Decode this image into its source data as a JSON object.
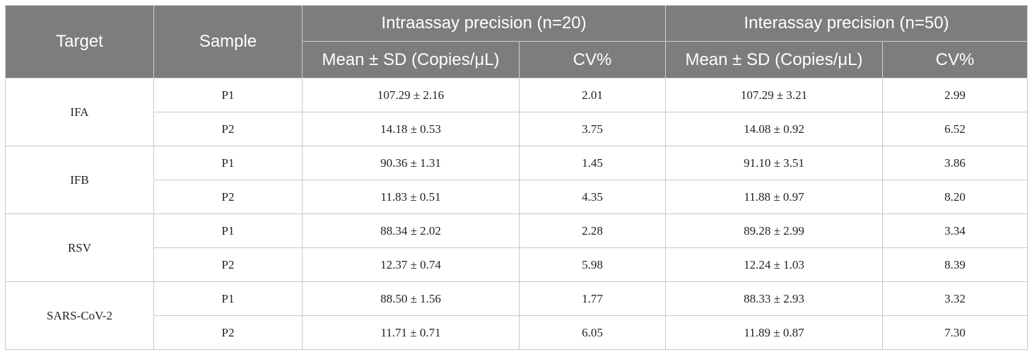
{
  "header": {
    "target": "Target",
    "sample": "Sample",
    "intra_group": "Intraassay precision (n=20)",
    "inter_group": "Interassay precision (n=50)",
    "intra_mean": "Mean ± SD (Copies/μL)",
    "intra_cv": "CV%",
    "inter_mean": "Mean ± SD (Copies/μL)",
    "inter_cv": "CV%"
  },
  "groups": [
    {
      "target": "IFA",
      "rows": [
        {
          "sample": "P1",
          "intra_mean": "107.29 ± 2.16",
          "intra_cv": "2.01",
          "inter_mean": "107.29 ± 3.21",
          "inter_cv": "2.99"
        },
        {
          "sample": "P2",
          "intra_mean": "14.18 ± 0.53",
          "intra_cv": "3.75",
          "inter_mean": "14.08 ± 0.92",
          "inter_cv": "6.52"
        }
      ]
    },
    {
      "target": "IFB",
      "rows": [
        {
          "sample": "P1",
          "intra_mean": "90.36 ± 1.31",
          "intra_cv": "1.45",
          "inter_mean": "91.10 ± 3.51",
          "inter_cv": "3.86"
        },
        {
          "sample": "P2",
          "intra_mean": "11.83 ± 0.51",
          "intra_cv": "4.35",
          "inter_mean": "11.88 ± 0.97",
          "inter_cv": "8.20"
        }
      ]
    },
    {
      "target": "RSV",
      "rows": [
        {
          "sample": "P1",
          "intra_mean": "88.34 ± 2.02",
          "intra_cv": "2.28",
          "inter_mean": "89.28 ± 2.99",
          "inter_cv": "3.34"
        },
        {
          "sample": "P2",
          "intra_mean": "12.37 ± 0.74",
          "intra_cv": "5.98",
          "inter_mean": "12.24 ± 1.03",
          "inter_cv": "8.39"
        }
      ]
    },
    {
      "target": "SARS-CoV-2",
      "rows": [
        {
          "sample": "P1",
          "intra_mean": "88.50 ± 1.56",
          "intra_cv": "1.77",
          "inter_mean": "88.33 ± 2.93",
          "inter_cv": "3.32"
        },
        {
          "sample": "P2",
          "intra_mean": "11.71 ± 0.71",
          "intra_cv": "6.05",
          "inter_mean": "11.89 ± 0.87",
          "inter_cv": "7.30"
        }
      ]
    }
  ]
}
